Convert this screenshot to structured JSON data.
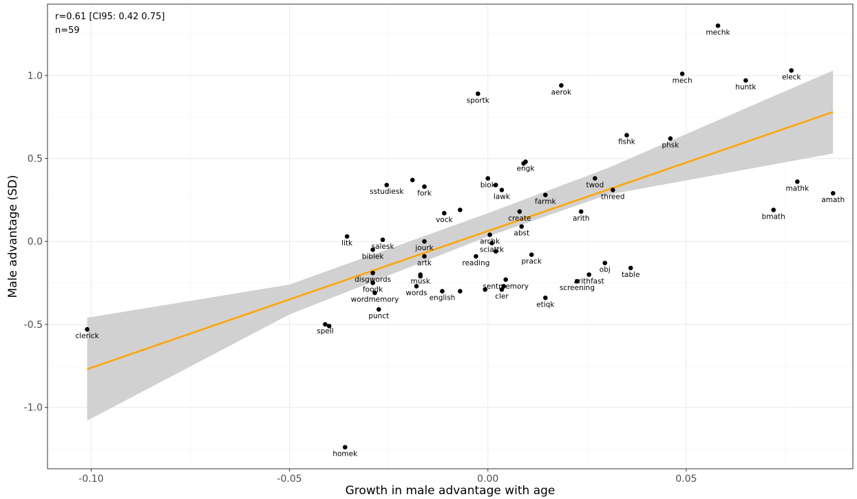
{
  "chart_data": {
    "type": "scatter",
    "xlabel": "Growth in male advantage with age",
    "ylabel": "Male advantage (SD)",
    "xlim": [
      -0.111,
      0.092
    ],
    "ylim": [
      -1.37,
      1.43
    ],
    "x_ticks": [
      -0.1,
      -0.05,
      0.0,
      0.05
    ],
    "x_tick_labels": [
      "-0.10",
      "-0.05",
      "0.00",
      "0.05"
    ],
    "y_ticks": [
      -1.0,
      -0.5,
      0.0,
      0.5,
      1.0
    ],
    "y_tick_labels": [
      "-1.0",
      "-0.5",
      "0.0",
      "0.5",
      "1.0"
    ],
    "grid": true,
    "annotations": [
      "r=0.61 [CI95: 0.42 0.75]",
      "n=59"
    ],
    "regression": {
      "color": "#FFA500",
      "x": [
        -0.101,
        0.087
      ],
      "y": [
        -0.77,
        0.78
      ],
      "ci_band": [
        {
          "x": -0.101,
          "lo": -1.08,
          "hi": -0.46
        },
        {
          "x": -0.05,
          "lo": -0.44,
          "hi": -0.26
        },
        {
          "x": 0.0,
          "lo": 0.03,
          "hi": 0.17
        },
        {
          "x": 0.03,
          "lo": 0.28,
          "hi": 0.44
        },
        {
          "x": 0.087,
          "lo": 0.53,
          "hi": 1.03
        }
      ],
      "ci_color": "#cccccc"
    },
    "points": [
      {
        "label": "clerick",
        "x": -0.101,
        "y": -0.53
      },
      {
        "label": "homek",
        "x": -0.036,
        "y": -1.24
      },
      {
        "label": "spell",
        "x": -0.041,
        "y": -0.5
      },
      {
        "label": "",
        "x": -0.04,
        "y": -0.51
      },
      {
        "label": "litk",
        "x": -0.0355,
        "y": 0.03
      },
      {
        "label": "salesk",
        "x": -0.0265,
        "y": 0.01
      },
      {
        "label": "biblek",
        "x": -0.029,
        "y": -0.05
      },
      {
        "label": "disgwords",
        "x": -0.029,
        "y": -0.19
      },
      {
        "label": "foodk",
        "x": -0.029,
        "y": -0.25
      },
      {
        "label": "wordmemory",
        "x": -0.0285,
        "y": -0.31
      },
      {
        "label": "punct",
        "x": -0.0275,
        "y": -0.41
      },
      {
        "label": "sstudiesk",
        "x": -0.0255,
        "y": 0.34
      },
      {
        "label": "",
        "x": -0.019,
        "y": 0.37
      },
      {
        "label": "fork",
        "x": -0.016,
        "y": 0.33
      },
      {
        "label": "jourk",
        "x": -0.016,
        "y": 0.0
      },
      {
        "label": "artk",
        "x": -0.016,
        "y": -0.09
      },
      {
        "label": "musk",
        "x": -0.017,
        "y": -0.2
      },
      {
        "label": "",
        "x": -0.017,
        "y": -0.21
      },
      {
        "label": "words",
        "x": -0.018,
        "y": -0.27
      },
      {
        "label": "english",
        "x": -0.0115,
        "y": -0.3
      },
      {
        "label": "",
        "x": -0.007,
        "y": -0.3
      },
      {
        "label": "vock",
        "x": -0.011,
        "y": 0.17
      },
      {
        "label": "",
        "x": -0.007,
        "y": 0.19
      },
      {
        "label": "reading",
        "x": -0.003,
        "y": -0.09
      },
      {
        "label": "sportk",
        "x": -0.0025,
        "y": 0.89
      },
      {
        "label": "biok",
        "x": 0.0,
        "y": 0.38
      },
      {
        "label": "lawk",
        "x": 0.0035,
        "y": 0.31
      },
      {
        "label": "",
        "x": 0.002,
        "y": 0.34
      },
      {
        "label": "archk",
        "x": 0.0005,
        "y": 0.04
      },
      {
        "label": "sciattk",
        "x": 0.001,
        "y": -0.01
      },
      {
        "label": "",
        "x": 0.002,
        "y": -0.06
      },
      {
        "label": "",
        "x": -0.0007,
        "y": -0.29
      },
      {
        "label": "sentmemory",
        "x": 0.0045,
        "y": -0.23
      },
      {
        "label": "cler",
        "x": 0.0035,
        "y": -0.29
      },
      {
        "label": "",
        "x": 0.004,
        "y": -0.27
      },
      {
        "label": "create",
        "x": 0.008,
        "y": 0.18
      },
      {
        "label": "abst",
        "x": 0.0085,
        "y": 0.09
      },
      {
        "label": "prack",
        "x": 0.011,
        "y": -0.08
      },
      {
        "label": "engk",
        "x": 0.0095,
        "y": 0.48
      },
      {
        "label": "",
        "x": 0.009,
        "y": 0.47
      },
      {
        "label": "farmk",
        "x": 0.0145,
        "y": 0.28
      },
      {
        "label": "etiqk",
        "x": 0.0145,
        "y": -0.34
      },
      {
        "label": "aerok",
        "x": 0.0185,
        "y": 0.94
      },
      {
        "label": "arith",
        "x": 0.0235,
        "y": 0.18
      },
      {
        "label": "screening",
        "x": 0.0225,
        "y": -0.24
      },
      {
        "label": "arithfast",
        "x": 0.0255,
        "y": -0.2
      },
      {
        "label": "twod",
        "x": 0.027,
        "y": 0.38
      },
      {
        "label": "threed",
        "x": 0.0315,
        "y": 0.31
      },
      {
        "label": "obj",
        "x": 0.0295,
        "y": -0.13
      },
      {
        "label": "table",
        "x": 0.036,
        "y": -0.16
      },
      {
        "label": "fishk",
        "x": 0.035,
        "y": 0.64
      },
      {
        "label": "phsk",
        "x": 0.046,
        "y": 0.62
      },
      {
        "label": "mech",
        "x": 0.049,
        "y": 1.01
      },
      {
        "label": "mechk",
        "x": 0.058,
        "y": 1.3
      },
      {
        "label": "huntk",
        "x": 0.065,
        "y": 0.97
      },
      {
        "label": "eleck",
        "x": 0.0765,
        "y": 1.03
      },
      {
        "label": "mathk",
        "x": 0.078,
        "y": 0.36
      },
      {
        "label": "bmath",
        "x": 0.072,
        "y": 0.19
      },
      {
        "label": "amath",
        "x": 0.087,
        "y": 0.29
      }
    ]
  }
}
